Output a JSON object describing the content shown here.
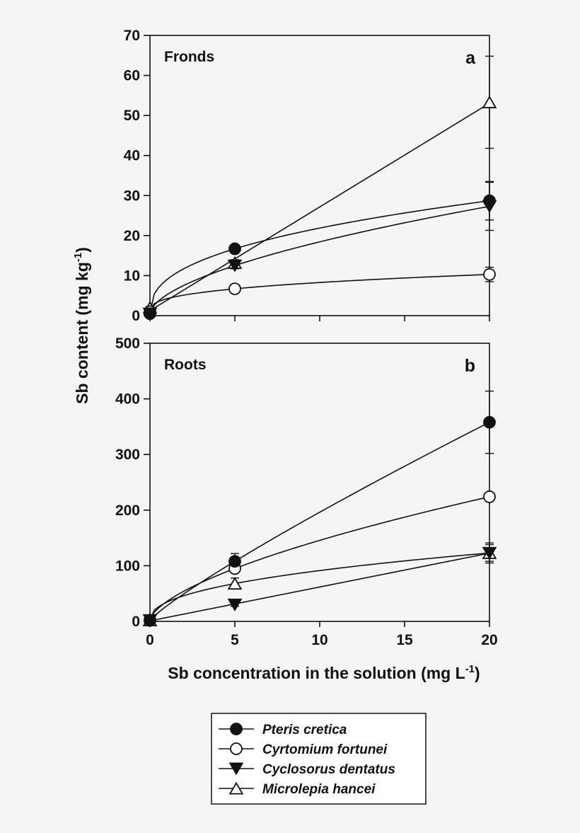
{
  "chart_data": [
    {
      "type": "line",
      "panel_name": "Fronds",
      "panel_letter": "a",
      "x": [
        0,
        5,
        20
      ],
      "xlim": [
        0,
        20
      ],
      "ylim": [
        0,
        70
      ],
      "yticks": [
        0,
        10,
        20,
        30,
        40,
        50,
        60,
        70
      ],
      "yticklabels": [
        "0",
        "10",
        "20",
        "30",
        "40",
        "50",
        "60",
        "70"
      ],
      "series": [
        {
          "name": "Pteris cretica",
          "values": [
            0.5,
            16.7,
            28.7
          ],
          "err": [
            0.3,
            0.8,
            4.8
          ],
          "fit": "power"
        },
        {
          "name": "Cyrtomium fortunei",
          "values": [
            1.0,
            6.7,
            10.3
          ],
          "err": [
            0.3,
            0.5,
            1.8
          ],
          "fit": "power"
        },
        {
          "name": "Cyclosorus dentatus",
          "values": [
            0.5,
            12.5,
            27.3
          ],
          "err": [
            0.3,
            0.8,
            6.0
          ],
          "fit": "power"
        },
        {
          "name": "Microlepia hancei",
          "values": [
            2.0,
            13.2,
            53.3
          ],
          "err": [
            0.3,
            0.8,
            11.5
          ],
          "fit": "linear"
        }
      ]
    },
    {
      "type": "line",
      "panel_name": "Roots",
      "panel_letter": "b",
      "x": [
        0,
        5,
        20
      ],
      "xlim": [
        0,
        20
      ],
      "ylim": [
        0,
        500
      ],
      "yticks": [
        0,
        100,
        200,
        300,
        400,
        500
      ],
      "yticklabels": [
        "0",
        "100",
        "200",
        "300",
        "400",
        "500"
      ],
      "xticks": [
        0,
        5,
        10,
        15,
        20
      ],
      "xticklabels": [
        "0",
        "5",
        "10",
        "15",
        "20"
      ],
      "series": [
        {
          "name": "Pteris cretica",
          "values": [
            2,
            108,
            358
          ],
          "err": [
            1,
            14,
            56
          ],
          "fit": "power"
        },
        {
          "name": "Cyrtomium fortunei",
          "values": [
            2,
            95,
            224
          ],
          "err": [
            1,
            6,
            5
          ],
          "fit": "power"
        },
        {
          "name": "Cyclosorus dentatus",
          "values": [
            2,
            30,
            123
          ],
          "err": [
            1,
            3,
            15
          ],
          "fit": "linear"
        },
        {
          "name": "Microlepia hancei",
          "values": [
            2,
            68,
            123
          ],
          "err": [
            1,
            10,
            18
          ],
          "fit": "power"
        }
      ]
    }
  ],
  "ylabel": {
    "text": "Sb content (mg kg",
    "sup": "-1",
    "close": ")"
  },
  "xlabel": {
    "text": "Sb concentration in the solution (mg L",
    "sup": "-1",
    "close": ")"
  },
  "legend": {
    "placement": "bottom-center",
    "entries": [
      {
        "label": "Pteris cretica",
        "marker": "filled-circle"
      },
      {
        "label": "Cyrtomium fortunei",
        "marker": "open-circle"
      },
      {
        "label": "Cyclosorus dentatus",
        "marker": "filled-triangle-down"
      },
      {
        "label": "Microlepia hancei",
        "marker": "open-triangle-up"
      }
    ]
  },
  "colors": {
    "line": "#111111",
    "fill": "#111111",
    "open_fill": "#ffffff",
    "background": "#f5f5f5"
  }
}
